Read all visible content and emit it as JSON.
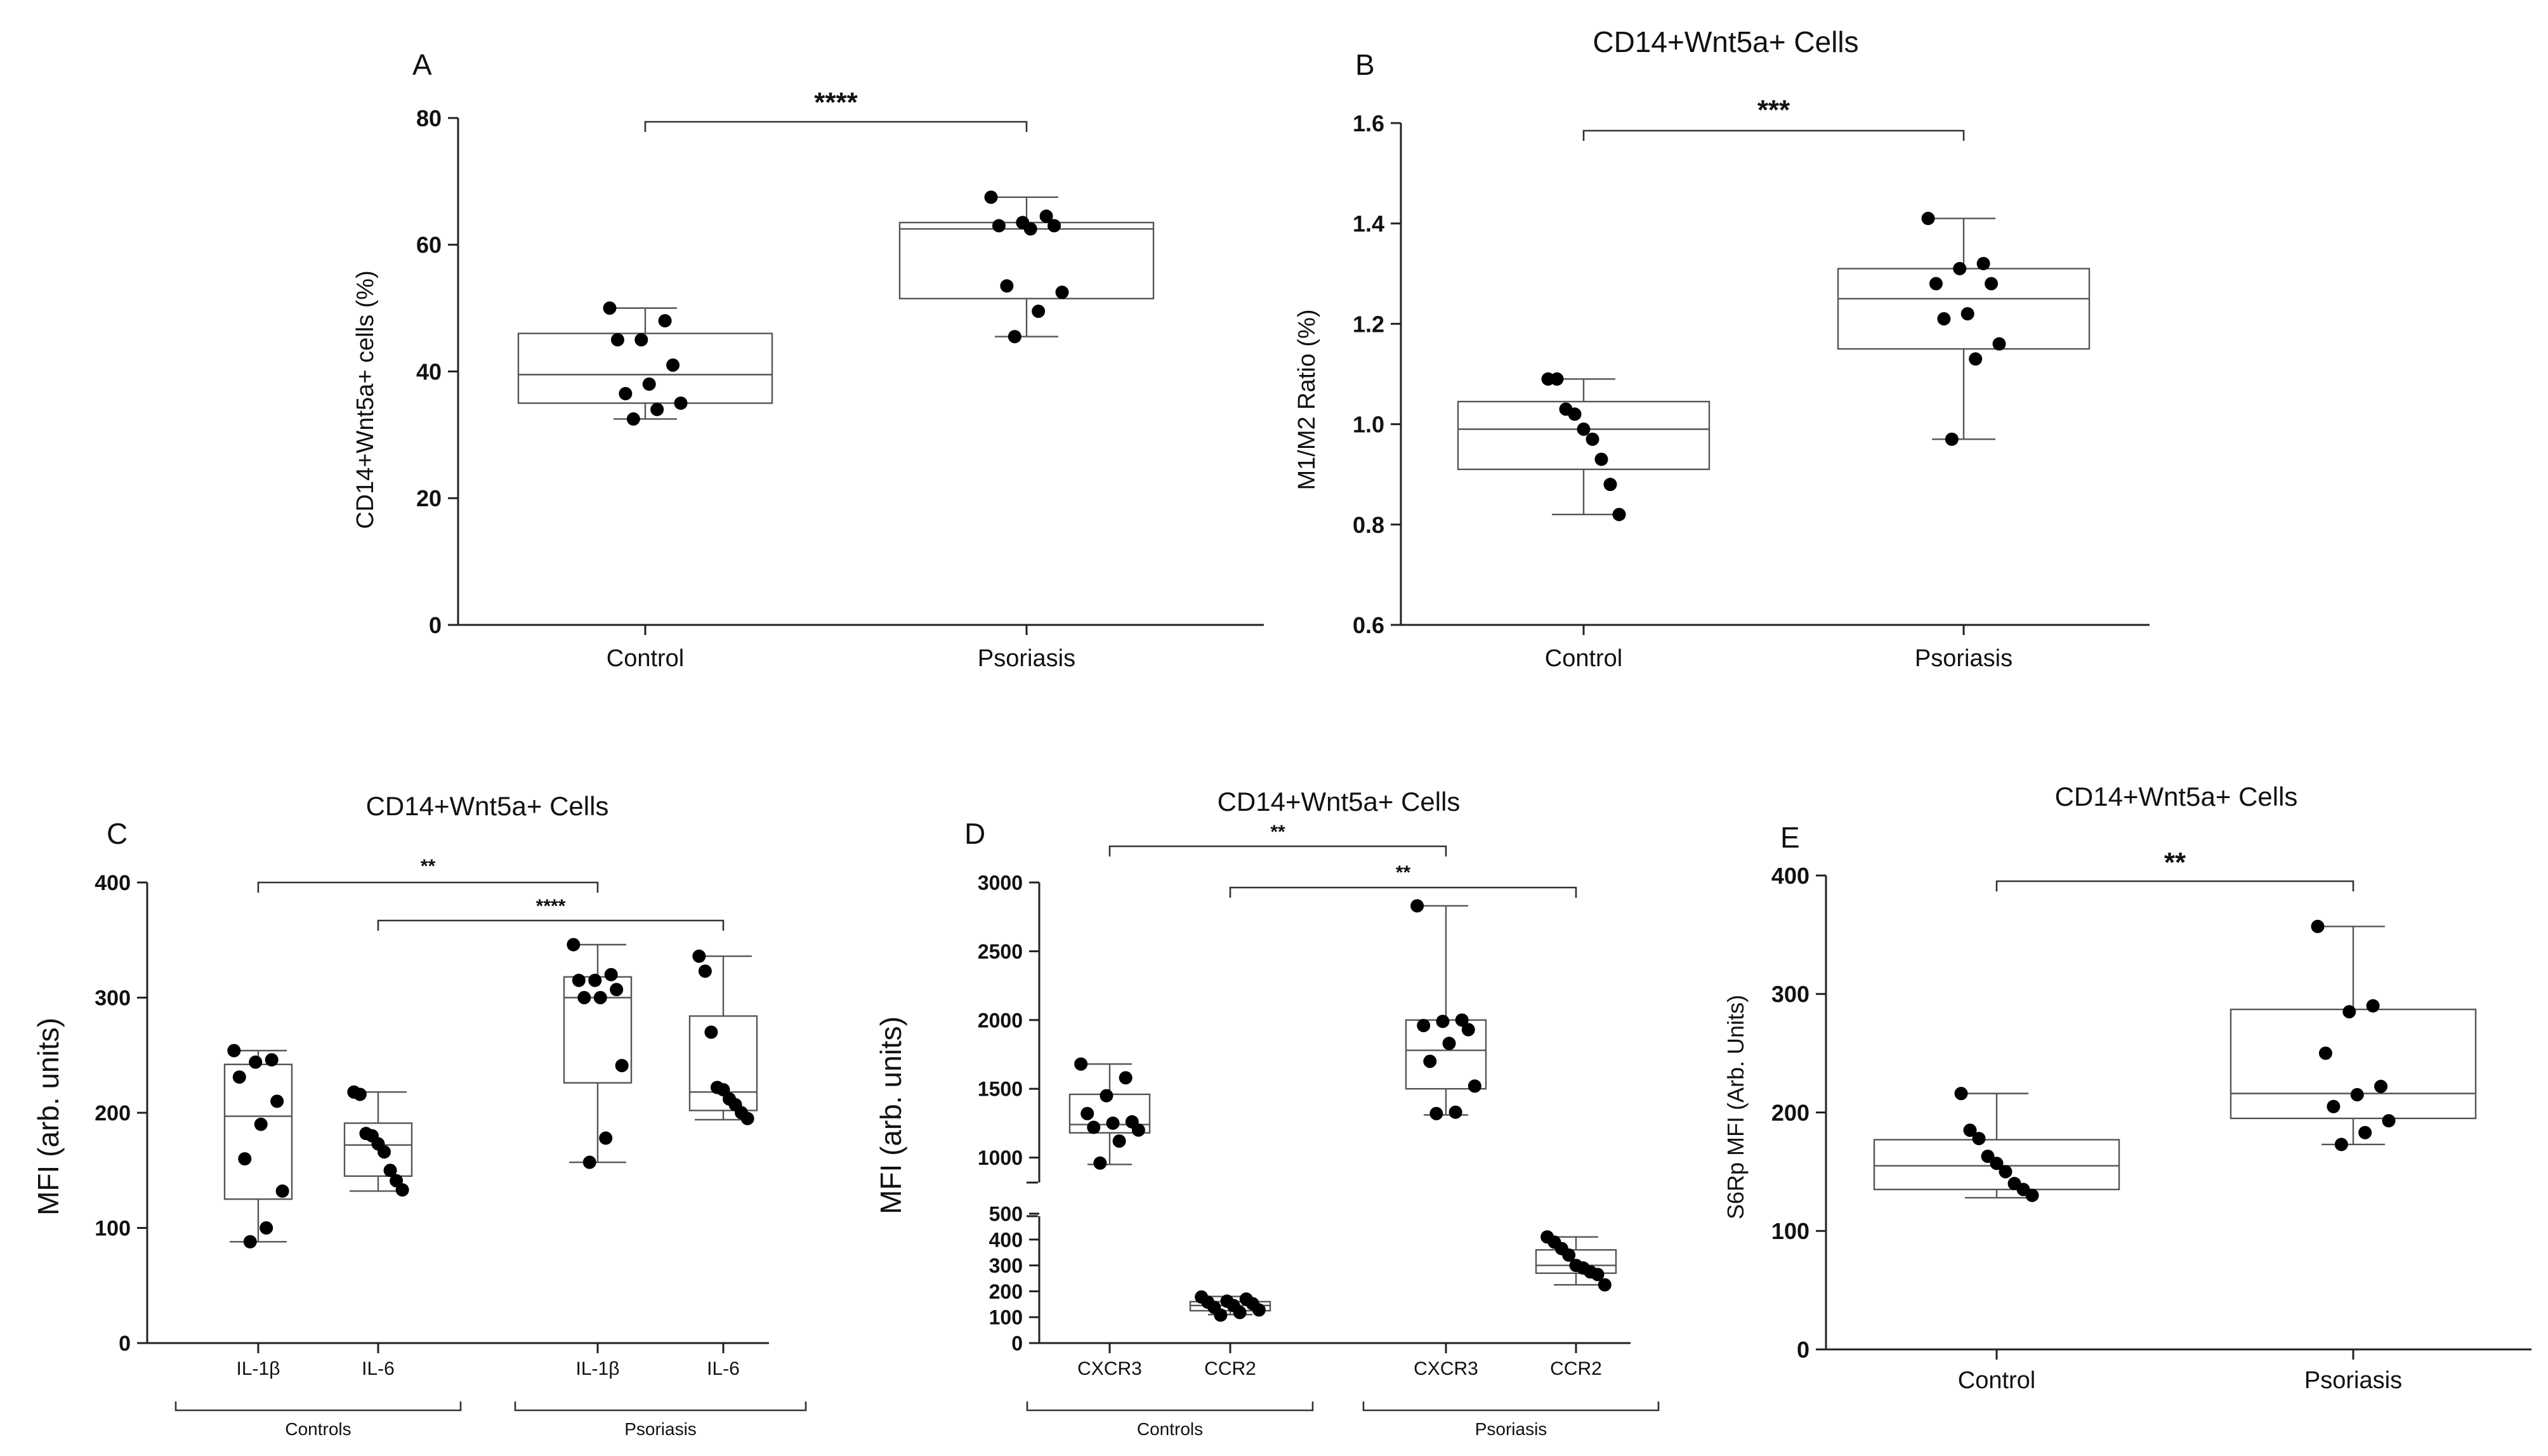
{
  "figure": "Box plots of CD14+Wnt5a+ cells in Control vs Psoriasis",
  "chart_data": [
    {
      "panel": "A",
      "type": "box",
      "title": "",
      "ylabel": "CD14+Wnt5a+ cells (%)",
      "xlabel": "",
      "ylim": [
        0,
        80
      ],
      "yticks": [
        0,
        20,
        40,
        60,
        80
      ],
      "categories": [
        "Control",
        "Psoriasis"
      ],
      "boxes": [
        {
          "name": "Control",
          "min": 32.5,
          "q1": 35,
          "median": 39.5,
          "q3": 46,
          "max": 50,
          "points": [
            50,
            48,
            45,
            45,
            41,
            38,
            36.5,
            35,
            34,
            32.5
          ]
        },
        {
          "name": "Psoriasis",
          "min": 45.5,
          "q1": 51.5,
          "median": 62.5,
          "q3": 63.5,
          "max": 67.5,
          "points": [
            67.5,
            64.5,
            63.5,
            63,
            63,
            62.5,
            53.5,
            52.5,
            49.5,
            45.5
          ]
        }
      ],
      "comparisons": [
        {
          "from": "Control",
          "to": "Psoriasis",
          "label": "****"
        }
      ]
    },
    {
      "panel": "B",
      "type": "box",
      "title": "CD14+Wnt5a+ Cells",
      "ylabel": "M1/M2 Ratio (%)",
      "xlabel": "",
      "ylim": [
        0.6,
        1.6
      ],
      "yticks": [
        0.6,
        0.8,
        1.0,
        1.2,
        1.4,
        1.6
      ],
      "ytick_labels": [
        "0.6",
        "0.8",
        "1.0",
        "1.2",
        "1.4",
        "1.6"
      ],
      "categories": [
        "Control",
        "Psoriasis"
      ],
      "boxes": [
        {
          "name": "Control",
          "min": 0.82,
          "q1": 0.91,
          "median": 0.99,
          "q3": 1.045,
          "max": 1.09,
          "points": [
            1.09,
            1.09,
            1.03,
            1.02,
            0.99,
            0.97,
            0.93,
            0.88,
            0.82
          ]
        },
        {
          "name": "Psoriasis",
          "min": 0.97,
          "q1": 1.15,
          "median": 1.25,
          "q3": 1.31,
          "max": 1.41,
          "points": [
            1.41,
            1.32,
            1.31,
            1.28,
            1.28,
            1.22,
            1.21,
            1.16,
            1.13,
            0.97
          ]
        }
      ],
      "comparisons": [
        {
          "from": "Control",
          "to": "Psoriasis",
          "label": "***"
        }
      ]
    },
    {
      "panel": "C",
      "type": "box",
      "title": "CD14+Wnt5a+ Cells",
      "ylabel": "MFI (arb. units)",
      "xlabel": "",
      "ylim": [
        0,
        400
      ],
      "yticks": [
        0,
        100,
        200,
        300,
        400
      ],
      "categories": [
        "IL-1β",
        "IL-6",
        "IL-1β",
        "IL-6"
      ],
      "groups": [
        {
          "label": "Controls",
          "span": [
            0,
            1
          ]
        },
        {
          "label": "Psoriasis",
          "span": [
            2,
            3
          ]
        }
      ],
      "boxes": [
        {
          "name": "IL-1β",
          "min": 88,
          "q1": 125,
          "median": 197,
          "q3": 242,
          "max": 254,
          "points": [
            254,
            246,
            244,
            231,
            210,
            190,
            160,
            132,
            100,
            88
          ]
        },
        {
          "name": "IL-6",
          "min": 132,
          "q1": 145,
          "median": 172,
          "q3": 191,
          "max": 218,
          "points": [
            218,
            216,
            182,
            180,
            173,
            166,
            150,
            141,
            133
          ]
        },
        {
          "name": "IL-1β",
          "min": 157,
          "q1": 226,
          "median": 300,
          "q3": 318,
          "max": 346,
          "points": [
            346,
            320,
            315,
            315,
            307,
            300,
            300,
            241,
            178,
            157
          ]
        },
        {
          "name": "IL-6",
          "min": 194,
          "q1": 202,
          "median": 218,
          "q3": 284,
          "max": 336,
          "points": [
            336,
            323,
            270,
            222,
            220,
            212,
            207,
            200,
            195
          ]
        }
      ],
      "comparisons": [
        {
          "from": 0,
          "to": 2,
          "label": "**"
        },
        {
          "from": 1,
          "to": 3,
          "label": "****"
        }
      ]
    },
    {
      "panel": "D",
      "type": "box",
      "title": "CD14+Wnt5a+ Cells",
      "ylabel": "MFI (arb. units)",
      "xlabel": "",
      "axis_break": {
        "lower": [
          0,
          500
        ],
        "upper": [
          800,
          3000
        ]
      },
      "yticks": [
        0,
        100,
        200,
        300,
        400,
        500,
        1000,
        1500,
        2000,
        2500,
        3000
      ],
      "categories": [
        "CXCR3",
        "CCR2",
        "CXCR3",
        "CCR2"
      ],
      "groups": [
        {
          "label": "Controls",
          "span": [
            0,
            1
          ]
        },
        {
          "label": "Psoriasis",
          "span": [
            2,
            3
          ]
        }
      ],
      "boxes": [
        {
          "name": "CXCR3",
          "min": 950,
          "q1": 1180,
          "median": 1240,
          "q3": 1460,
          "max": 1680,
          "points": [
            1680,
            1580,
            1450,
            1320,
            1260,
            1250,
            1220,
            1200,
            1120,
            960
          ]
        },
        {
          "name": "CCR2",
          "min": 110,
          "q1": 125,
          "median": 145,
          "q3": 160,
          "max": 180,
          "points": [
            178,
            170,
            162,
            158,
            152,
            145,
            138,
            128,
            118,
            108
          ]
        },
        {
          "name": "CXCR3",
          "min": 1310,
          "q1": 1500,
          "median": 1780,
          "q3": 2000,
          "max": 2830,
          "points": [
            2830,
            2000,
            1990,
            1960,
            1930,
            1830,
            1700,
            1520,
            1330,
            1320
          ]
        },
        {
          "name": "CCR2",
          "min": 225,
          "q1": 270,
          "median": 300,
          "q3": 360,
          "max": 410,
          "points": [
            410,
            390,
            365,
            340,
            300,
            290,
            275,
            265,
            225
          ]
        }
      ],
      "comparisons": [
        {
          "from": 0,
          "to": 2,
          "label": "**"
        },
        {
          "from": 1,
          "to": 3,
          "label": "**"
        }
      ]
    },
    {
      "panel": "E",
      "type": "box",
      "title": "CD14+Wnt5a+ Cells",
      "ylabel": "S6Rp MFI (Arb. Units)",
      "xlabel": "",
      "ylim": [
        0,
        400
      ],
      "yticks": [
        0,
        100,
        200,
        300,
        400
      ],
      "categories": [
        "Control",
        "Psoriasis"
      ],
      "boxes": [
        {
          "name": "Control",
          "min": 128,
          "q1": 135,
          "median": 155,
          "q3": 177,
          "max": 216,
          "points": [
            216,
            185,
            178,
            163,
            157,
            150,
            140,
            135,
            130
          ]
        },
        {
          "name": "Psoriasis",
          "min": 173,
          "q1": 195,
          "median": 216,
          "q3": 287,
          "max": 357,
          "points": [
            357,
            290,
            285,
            250,
            222,
            215,
            205,
            193,
            183,
            173
          ]
        }
      ],
      "comparisons": [
        {
          "from": "Control",
          "to": "Psoriasis",
          "label": "**"
        }
      ]
    }
  ]
}
